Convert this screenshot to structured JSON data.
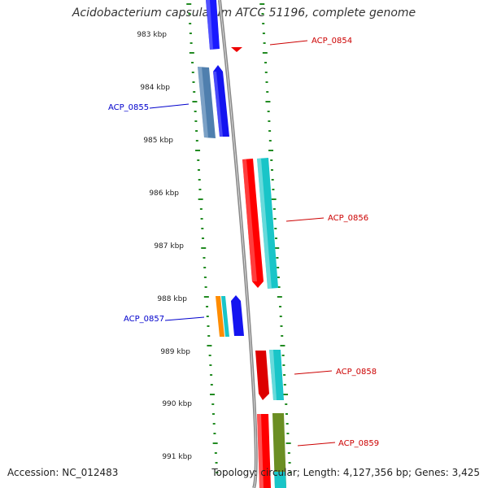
{
  "title": "Acidobacterium capsulatum ATCC 51196, complete genome",
  "footer": {
    "accession": "Accession: NC_012483",
    "summary": "Topology: circular; Length: 4,127,356 bp; Genes: 3,425"
  },
  "ticks": [
    "983 kbp",
    "984 kbp",
    "985 kbp",
    "986 kbp",
    "987 kbp",
    "988 kbp",
    "989 kbp",
    "990 kbp",
    "991 kbp"
  ],
  "labels": {
    "acp0854": "ACP_0854",
    "acp0855": "ACP_0855",
    "acp0856": "ACP_0856",
    "acp0857": "ACP_0857",
    "acp0858": "ACP_0858",
    "acp0859": "ACP_0859"
  },
  "colors": {
    "reverse_label": "#0000cc",
    "forward_label": "#cc0000",
    "backbone": "#888888",
    "gc_skew": "#228b22"
  }
}
